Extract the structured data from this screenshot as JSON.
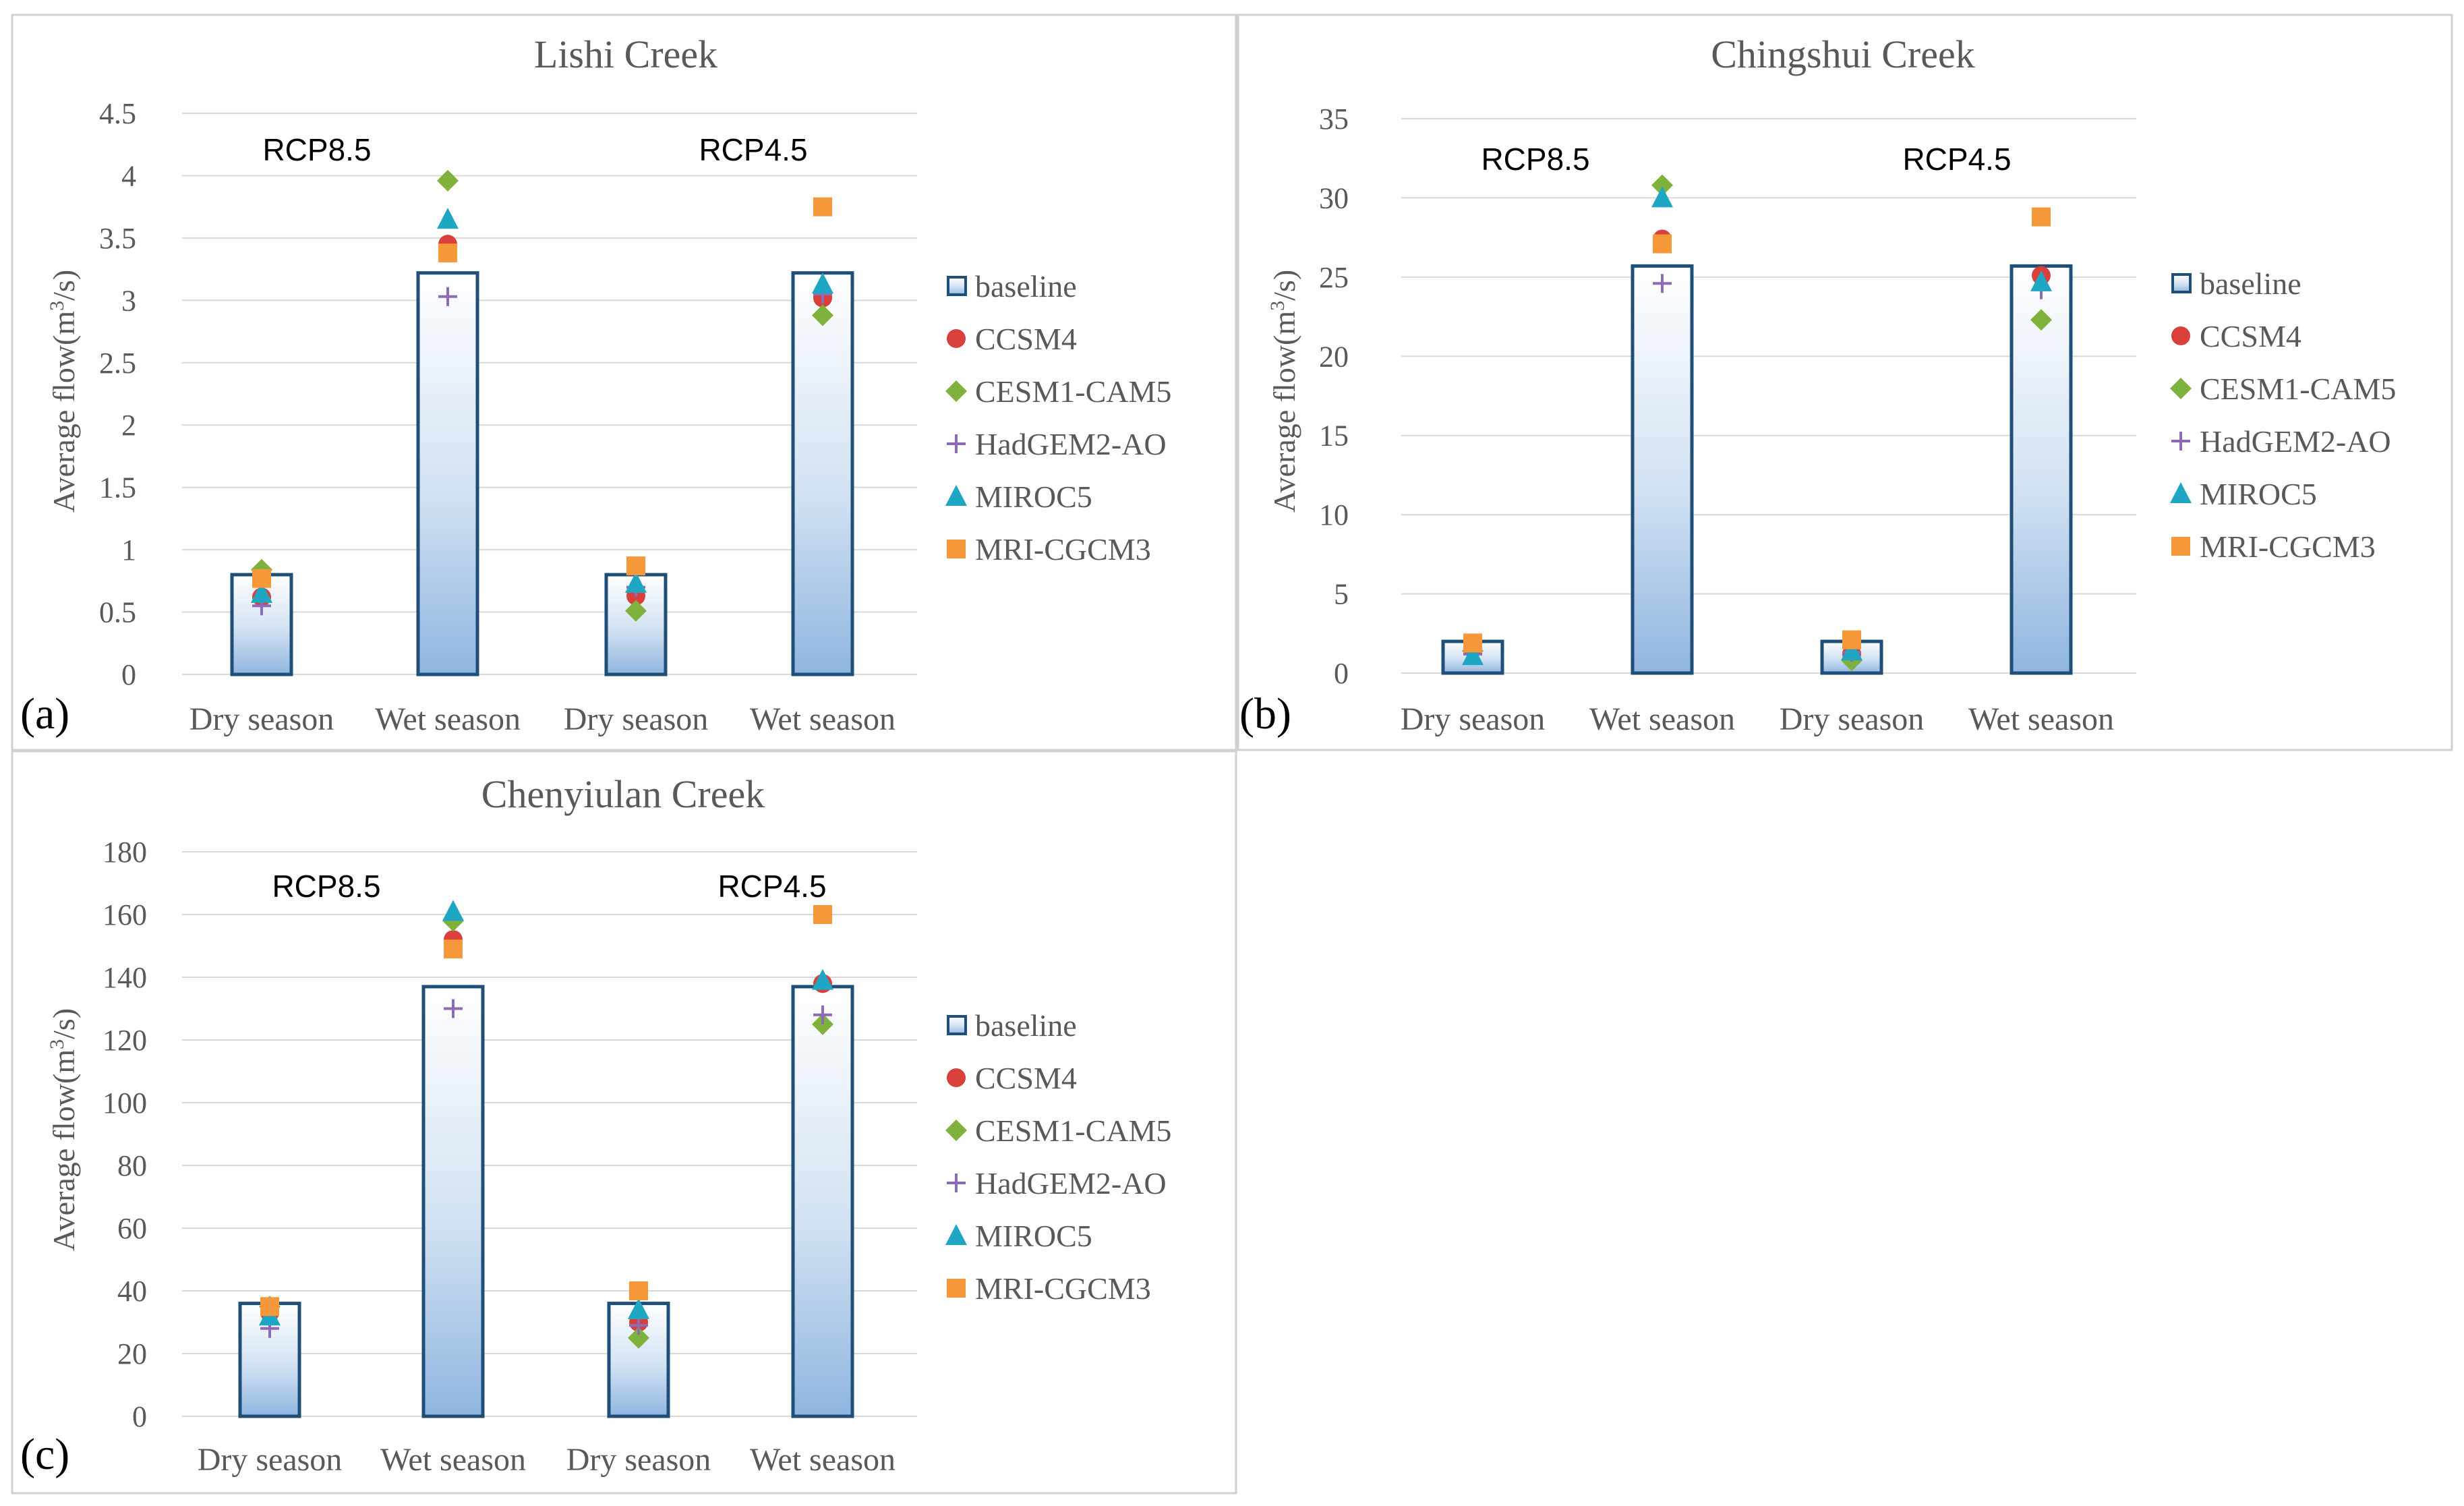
{
  "chart_data": [
    {
      "type": "bar",
      "title": "Lishi Creek",
      "panel_label": "(a)",
      "ylabel_main": "Average flow(m",
      "ylabel_sup": "3",
      "ylabel_tail": "/s)",
      "categories": [
        "Dry season",
        "Wet season",
        "Dry season",
        "Wet season"
      ],
      "groups": [
        "RCP8.5",
        "RCP4.5"
      ],
      "ylim": [
        0,
        4.5
      ],
      "yticks": [
        0,
        0.5,
        1,
        1.5,
        2,
        2.5,
        3,
        3.5,
        4,
        4.5
      ],
      "ytick_labels": [
        "0",
        "0.5",
        "1",
        "1.5",
        "2",
        "2.5",
        "3",
        "3.5",
        "4",
        "4.5"
      ],
      "grid": true,
      "series": [
        {
          "name": "baseline",
          "kind": "bar",
          "values": [
            0.8,
            3.22,
            0.8,
            3.22
          ]
        },
        {
          "name": "CCSM4",
          "kind": "marker",
          "marker": "circle",
          "color": "#d9403b",
          "values": [
            0.62,
            3.45,
            0.63,
            3.02
          ]
        },
        {
          "name": "CESM1-CAM5",
          "kind": "marker",
          "marker": "diamond",
          "color": "#7eb23c",
          "values": [
            0.84,
            3.96,
            0.51,
            2.88
          ]
        },
        {
          "name": "HadGEM2-AO",
          "kind": "marker",
          "marker": "plus",
          "color": "#8e6bb6",
          "values": [
            0.55,
            3.03,
            0.7,
            3.05
          ]
        },
        {
          "name": "MIROC5",
          "kind": "marker",
          "marker": "triangle",
          "color": "#1fa6c2",
          "values": [
            0.65,
            3.65,
            0.73,
            3.13
          ]
        },
        {
          "name": "MRI-CGCM3",
          "kind": "marker",
          "marker": "square",
          "color": "#f5983a",
          "values": [
            0.77,
            3.38,
            0.87,
            3.75
          ]
        }
      ]
    },
    {
      "type": "bar",
      "title": "Chingshui Creek",
      "panel_label": "(b)",
      "ylabel_main": "Average flow(m",
      "ylabel_sup": "3",
      "ylabel_tail": "/s)",
      "categories": [
        "Dry season",
        "Wet season",
        "Dry season",
        "Wet season"
      ],
      "groups": [
        "RCP8.5",
        "RCP4.5"
      ],
      "ylim": [
        0,
        35
      ],
      "yticks": [
        0,
        5,
        10,
        15,
        20,
        25,
        30,
        35
      ],
      "ytick_labels": [
        "0",
        "5",
        "10",
        "15",
        "20",
        "25",
        "30",
        "35"
      ],
      "grid": true,
      "series": [
        {
          "name": "baseline",
          "kind": "bar",
          "values": [
            2.0,
            25.7,
            2.0,
            25.7
          ]
        },
        {
          "name": "CCSM4",
          "kind": "marker",
          "marker": "circle",
          "color": "#d9403b",
          "values": [
            1.6,
            27.4,
            1.2,
            25.1
          ]
        },
        {
          "name": "CESM1-CAM5",
          "kind": "marker",
          "marker": "diamond",
          "color": "#7eb23c",
          "values": [
            1.4,
            30.8,
            0.8,
            22.3
          ]
        },
        {
          "name": "HadGEM2-AO",
          "kind": "marker",
          "marker": "plus",
          "color": "#8e6bb6",
          "values": [
            1.2,
            24.6,
            1.3,
            24.2
          ]
        },
        {
          "name": "MIROC5",
          "kind": "marker",
          "marker": "triangle",
          "color": "#1fa6c2",
          "values": [
            1.1,
            30.0,
            1.4,
            24.7
          ]
        },
        {
          "name": "MRI-CGCM3",
          "kind": "marker",
          "marker": "square",
          "color": "#f5983a",
          "values": [
            1.9,
            27.1,
            2.1,
            28.8
          ]
        }
      ]
    },
    {
      "type": "bar",
      "title": "Chenyiulan Creek",
      "panel_label": "(c)",
      "ylabel_main": "Average flow(m",
      "ylabel_sup": "3",
      "ylabel_tail": "/s)",
      "categories": [
        "Dry season",
        "Wet season",
        "Dry season",
        "Wet season"
      ],
      "groups": [
        "RCP8.5",
        "RCP4.5"
      ],
      "ylim": [
        0,
        180
      ],
      "yticks": [
        0,
        20,
        40,
        60,
        80,
        100,
        120,
        140,
        160,
        180
      ],
      "ytick_labels": [
        "0",
        "20",
        "40",
        "60",
        "80",
        "100",
        "120",
        "140",
        "160",
        "180"
      ],
      "grid": true,
      "series": [
        {
          "name": "baseline",
          "kind": "bar",
          "values": [
            36,
            137,
            36,
            137
          ]
        },
        {
          "name": "CCSM4",
          "kind": "marker",
          "marker": "circle",
          "color": "#d9403b",
          "values": [
            33,
            152,
            30,
            138
          ]
        },
        {
          "name": "CESM1-CAM5",
          "kind": "marker",
          "marker": "diamond",
          "color": "#7eb23c",
          "values": [
            35,
            158,
            25,
            125
          ]
        },
        {
          "name": "HadGEM2-AO",
          "kind": "marker",
          "marker": "plus",
          "color": "#8e6bb6",
          "values": [
            28,
            130,
            29,
            128
          ]
        },
        {
          "name": "MIROC5",
          "kind": "marker",
          "marker": "triangle",
          "color": "#1fa6c2",
          "values": [
            32,
            161,
            34,
            139
          ]
        },
        {
          "name": "MRI-CGCM3",
          "kind": "marker",
          "marker": "square",
          "color": "#f5983a",
          "values": [
            35,
            149,
            40,
            160
          ]
        }
      ]
    }
  ]
}
